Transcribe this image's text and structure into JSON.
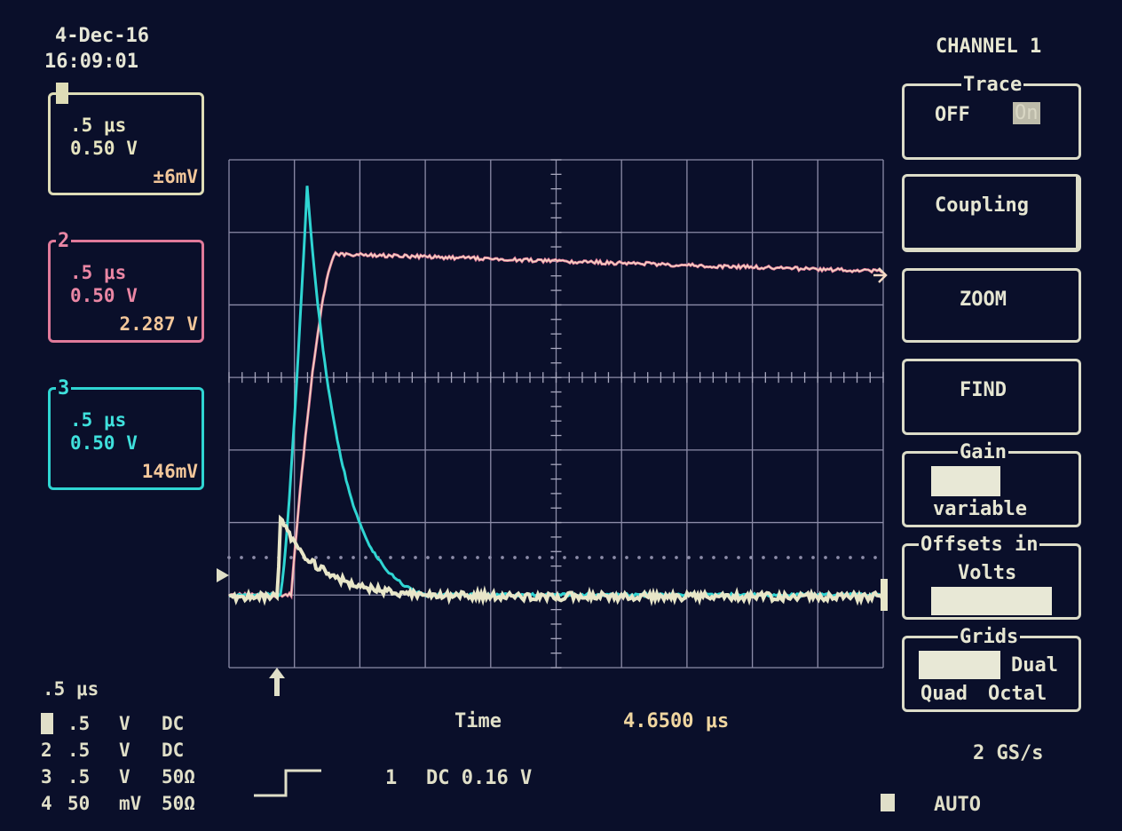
{
  "header": {
    "date": "4-Dec-16",
    "time": "16:09:01"
  },
  "channels": [
    {
      "num": "1",
      "timebase": ".5 μs",
      "volts": "0.50 V",
      "reading": "±6mV",
      "color": "#dedcb6"
    },
    {
      "num": "2",
      "timebase": ".5 μs",
      "volts": "0.50 V",
      "reading": "2.287 V",
      "color": "#e07a9a"
    },
    {
      "num": "3",
      "timebase": ".5 μs",
      "volts": "0.50 V",
      "reading": "146mV",
      "color": "#2fd5d2"
    }
  ],
  "menu": {
    "title": "CHANNEL 1",
    "trace": {
      "label": "Trace",
      "off": "OFF",
      "on": "On"
    },
    "coupling": "Coupling",
    "zoom": "ZOOM",
    "find": "FIND",
    "gain": {
      "label": "Gain",
      "value": "variable"
    },
    "offsets": {
      "label": "Offsets in",
      "unit": "Volts"
    },
    "grids": {
      "label": "Grids",
      "dual": "Dual",
      "quad": "Quad",
      "octal": "Octal"
    }
  },
  "bottom": {
    "timebase": ".5 μs",
    "rows": [
      {
        "num": "1",
        "v": ".5",
        "unit": "V",
        "coupling": "DC"
      },
      {
        "num": "2",
        "v": ".5",
        "unit": "V",
        "coupling": "DC"
      },
      {
        "num": "3",
        "v": ".5",
        "unit": "V",
        "coupling": "50Ω"
      },
      {
        "num": "4",
        "v": "50",
        "unit": "mV",
        "coupling": "50Ω"
      }
    ],
    "time_label": "Time",
    "time_value": "4.6500 μs",
    "trigger": {
      "channel": "1",
      "mode": "DC 0.16 V"
    },
    "sample_rate": "2 GS/s",
    "acq_mode": "AUTO"
  },
  "colors": {
    "background": "#0a0f2a",
    "grid": "#8c8ca8",
    "ch1": "#e8e6c8",
    "ch2": "#e07a9a",
    "ch3": "#2fd5d2"
  }
}
